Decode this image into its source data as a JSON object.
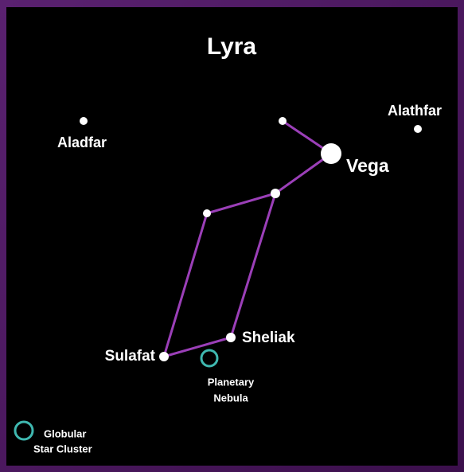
{
  "title": "Lyra",
  "stars": [
    {
      "label": "Aladfar"
    },
    {
      "label": "Alathfar"
    },
    {
      "label": "Vega"
    },
    {
      "label": "Sheliak"
    },
    {
      "label": "Sulafat"
    }
  ],
  "legend": [
    {
      "lines": [
        "Planetary",
        "Nebula"
      ]
    },
    {
      "lines": [
        "Globular",
        "Star Cluster"
      ]
    }
  ]
}
